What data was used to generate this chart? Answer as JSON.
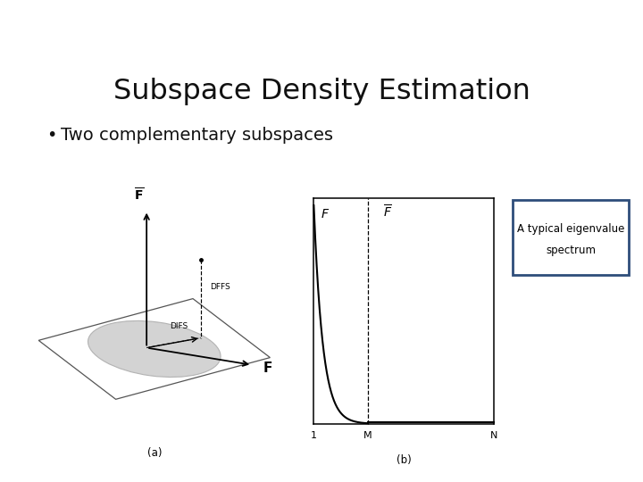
{
  "title": "Subspace Density Estimation",
  "bullet": "Two complementary subspaces",
  "header_color": "#5a8a5a",
  "bg_color": "#ffffff",
  "caption_a": "(a)",
  "caption_b": "(b)",
  "annotation_box_text_1": "A typical eigenvalue",
  "annotation_box_text_2": "spectrum",
  "annotation_box_edge": "#2e4d7a",
  "ellipse_fill": "#cccccc",
  "ellipse_edge": "#aaaaaa",
  "footer_color": "#5a8a5a"
}
